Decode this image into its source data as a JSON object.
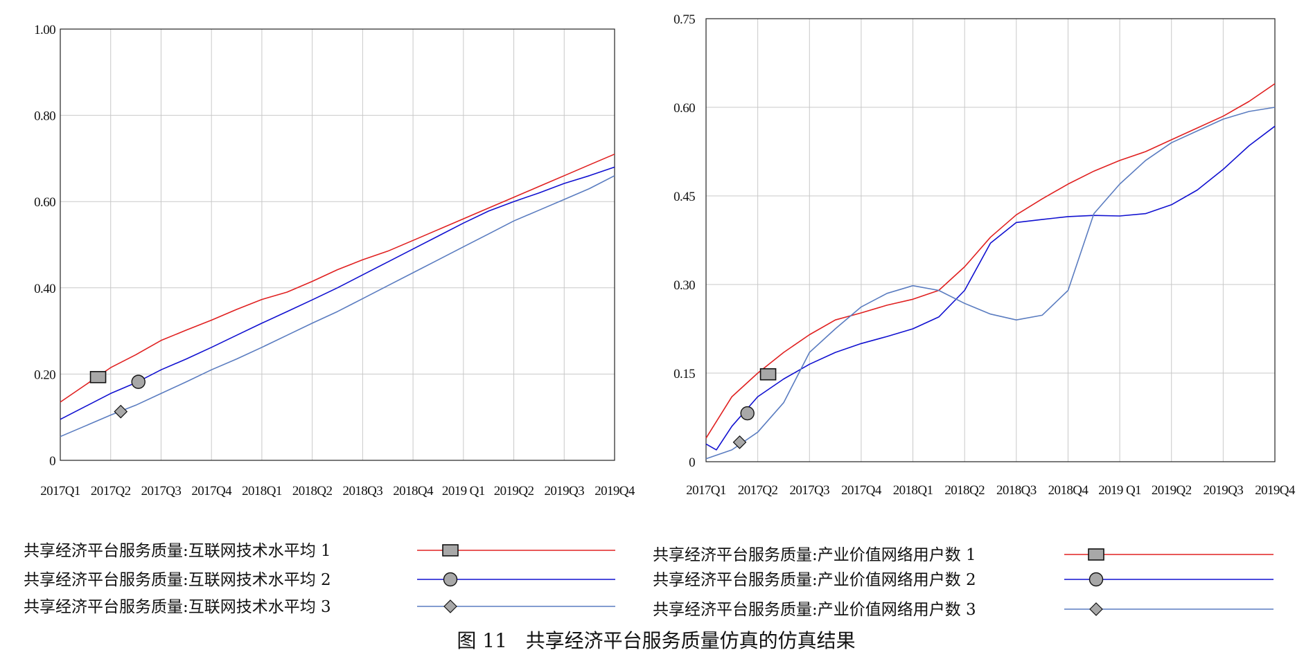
{
  "caption": "图 11   共享经济平台服务质量仿真的仿真结果",
  "colors": {
    "series1": "#e02020",
    "series2": "#1010d0",
    "series3": "#5a7cc0",
    "grid": "#c8c8c8",
    "axis": "#222222",
    "marker_fill": "#a8a8a8"
  },
  "chart_data": [
    {
      "type": "line",
      "categories": [
        "2017Q1",
        "2017Q2",
        "2017Q3",
        "2017Q4",
        "2018Q1",
        "2018Q2",
        "2018Q3",
        "2018Q4",
        "2019 Q1",
        "2019Q2",
        "2019Q3",
        "2019Q4"
      ],
      "ytick_labels": [
        "0",
        "0.20",
        "0.40",
        "0.60",
        "0.80",
        "1.00"
      ],
      "ylim": [
        0,
        1.0
      ],
      "grid": true,
      "legend_placement": "bottom",
      "series": [
        {
          "name": "共享经济平台服务质量:互联网技术水平均 1",
          "marker": "square",
          "marker_x": 0.75,
          "marker_y": 0.193,
          "x": [
            0,
            0.5,
            1,
            1.5,
            2,
            2.5,
            3,
            3.5,
            4,
            4.5,
            5,
            5.5,
            6,
            6.5,
            7,
            7.5,
            8,
            8.5,
            9,
            9.5,
            10,
            10.5,
            11
          ],
          "values": [
            0.135,
            0.175,
            0.215,
            0.245,
            0.278,
            0.302,
            0.325,
            0.35,
            0.373,
            0.39,
            0.415,
            0.442,
            0.465,
            0.485,
            0.51,
            0.535,
            0.56,
            0.585,
            0.61,
            0.635,
            0.66,
            0.685,
            0.71
          ]
        },
        {
          "name": "共享经济平台服务质量:互联网技术水平均 2",
          "marker": "circle",
          "marker_x": 1.55,
          "marker_y": 0.182,
          "x": [
            0,
            0.5,
            1,
            1.5,
            2,
            2.5,
            3,
            3.5,
            4,
            4.5,
            5,
            5.5,
            6,
            6.5,
            7,
            7.5,
            8,
            8.5,
            9,
            9.5,
            10,
            10.5,
            11
          ],
          "values": [
            0.095,
            0.125,
            0.155,
            0.18,
            0.21,
            0.235,
            0.262,
            0.29,
            0.318,
            0.345,
            0.372,
            0.4,
            0.43,
            0.46,
            0.49,
            0.52,
            0.55,
            0.578,
            0.6,
            0.62,
            0.642,
            0.66,
            0.68
          ]
        },
        {
          "name": "共享经济平台服务质量:互联网技术水平均 3",
          "marker": "diamond",
          "marker_x": 1.2,
          "marker_y": 0.113,
          "x": [
            0,
            0.5,
            1,
            1.5,
            2,
            2.5,
            3,
            3.5,
            4,
            4.5,
            5,
            5.5,
            6,
            6.5,
            7,
            7.5,
            8,
            8.5,
            9,
            9.5,
            10,
            10.5,
            11
          ],
          "values": [
            0.055,
            0.08,
            0.105,
            0.128,
            0.155,
            0.182,
            0.21,
            0.235,
            0.262,
            0.29,
            0.318,
            0.345,
            0.375,
            0.405,
            0.435,
            0.465,
            0.495,
            0.525,
            0.555,
            0.58,
            0.605,
            0.63,
            0.66
          ]
        }
      ]
    },
    {
      "type": "line",
      "categories": [
        "2017Q1",
        "2017Q2",
        "2017Q3",
        "2017Q4",
        "2018Q1",
        "2018Q2",
        "2018Q3",
        "2018Q4",
        "2019 Q1",
        "2019Q2",
        "2019Q3",
        "2019Q4"
      ],
      "ytick_labels": [
        "0",
        "0.15",
        "0.30",
        "0.45",
        "0.60",
        "0.75"
      ],
      "ylim": [
        0,
        0.75
      ],
      "grid": true,
      "legend_placement": "bottom",
      "series": [
        {
          "name": "共享经济平台服务质量:产业价值网络用户数 1",
          "marker": "square",
          "marker_x": 1.2,
          "marker_y": 0.148,
          "x": [
            0,
            0.5,
            1,
            1.5,
            2,
            2.5,
            3,
            3.5,
            4,
            4.5,
            5,
            5.5,
            6,
            6.5,
            7,
            7.5,
            8,
            8.5,
            9,
            9.5,
            10,
            10.5,
            11
          ],
          "values": [
            0.04,
            0.11,
            0.15,
            0.185,
            0.215,
            0.24,
            0.252,
            0.265,
            0.275,
            0.29,
            0.33,
            0.38,
            0.418,
            0.445,
            0.47,
            0.492,
            0.51,
            0.525,
            0.545,
            0.565,
            0.585,
            0.61,
            0.64
          ]
        },
        {
          "name": "共享经济平台服务质量:产业价值网络用户数 2",
          "marker": "circle",
          "marker_x": 0.8,
          "marker_y": 0.082,
          "x": [
            0,
            0.2,
            0.5,
            1,
            1.5,
            2,
            2.5,
            3,
            3.5,
            4,
            4.5,
            5,
            5.5,
            6,
            6.5,
            7,
            7.5,
            8,
            8.5,
            9,
            9.5,
            10,
            10.5,
            11
          ],
          "values": [
            0.03,
            0.02,
            0.06,
            0.11,
            0.14,
            0.165,
            0.185,
            0.2,
            0.212,
            0.225,
            0.245,
            0.29,
            0.37,
            0.405,
            0.41,
            0.415,
            0.417,
            0.416,
            0.42,
            0.435,
            0.46,
            0.495,
            0.535,
            0.568
          ]
        },
        {
          "name": "共享经济平台服务质量:产业价值网络用户数 3",
          "marker": "diamond",
          "marker_x": 0.65,
          "marker_y": 0.033,
          "x": [
            0,
            0.5,
            1,
            1.5,
            2,
            2.5,
            3,
            3.5,
            4,
            4.5,
            5,
            5.5,
            6,
            6.5,
            7,
            7.5,
            8,
            8.5,
            9,
            9.5,
            10,
            10.5,
            11
          ],
          "values": [
            0.005,
            0.02,
            0.05,
            0.1,
            0.185,
            0.225,
            0.262,
            0.285,
            0.298,
            0.29,
            0.268,
            0.25,
            0.24,
            0.248,
            0.29,
            0.42,
            0.47,
            0.51,
            0.54,
            0.56,
            0.58,
            0.593,
            0.6
          ]
        }
      ]
    }
  ]
}
